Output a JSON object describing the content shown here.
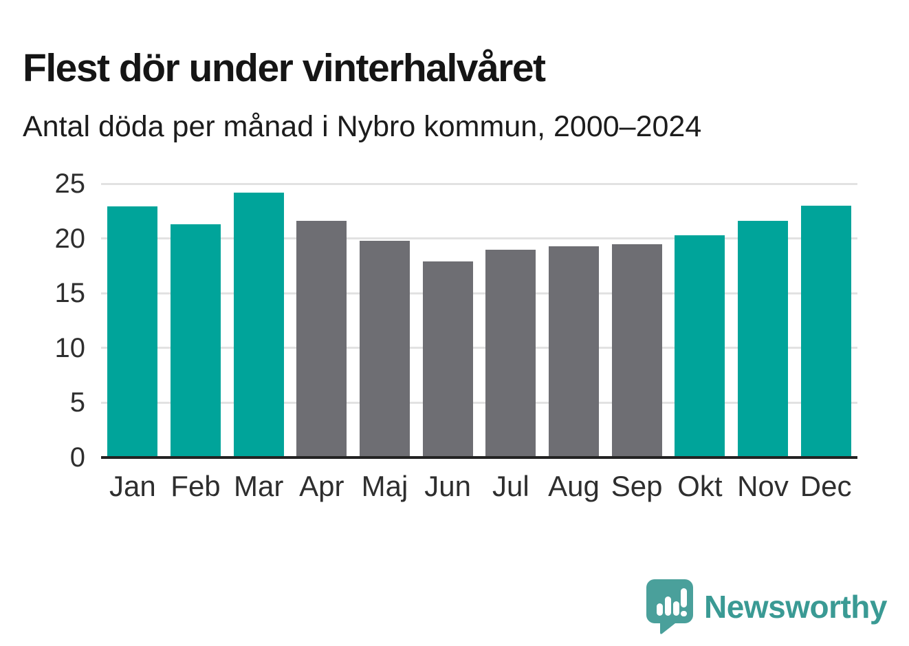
{
  "page": {
    "title": "Flest dör under vinterhalvåret",
    "subtitle": "Antal döda per månad i Nybro kommun, 2000–2024"
  },
  "chart_data": {
    "type": "bar",
    "title": "Flest dör under vinterhalvåret",
    "subtitle": "Antal döda per månad i Nybro kommun, 2000–2024",
    "categories": [
      "Jan",
      "Feb",
      "Mar",
      "Apr",
      "Maj",
      "Jun",
      "Jul",
      "Aug",
      "Sep",
      "Okt",
      "Nov",
      "Dec"
    ],
    "values": [
      22.9,
      21.3,
      24.2,
      21.6,
      19.8,
      17.9,
      19.0,
      19.3,
      19.5,
      20.3,
      21.6,
      23.0
    ],
    "bar_groups": [
      "winter",
      "winter",
      "winter",
      "summer",
      "summer",
      "summer",
      "summer",
      "summer",
      "summer",
      "winter",
      "winter",
      "winter"
    ],
    "group_colors": {
      "winter": "#00a49a",
      "summer": "#6e6e73"
    },
    "xlabel": "",
    "ylabel": "",
    "ylim": [
      0,
      25
    ],
    "yticks": [
      0,
      5,
      10,
      15,
      20,
      25
    ],
    "grid": true,
    "legend": false
  },
  "branding": {
    "logo_text": "Newsworthy",
    "logo_icon": "newsworthy-speech-bubble-chart-icon",
    "logo_text_color": "#3a9a94",
    "logo_icon_color": "#4aa09b"
  },
  "colors": {
    "background": "#ffffff",
    "title_text": "#151515",
    "subtitle_text": "#1c1c1c",
    "axis_text": "#2e2e2e",
    "gridline": "#e2e2e2",
    "baseline": "#232323"
  }
}
